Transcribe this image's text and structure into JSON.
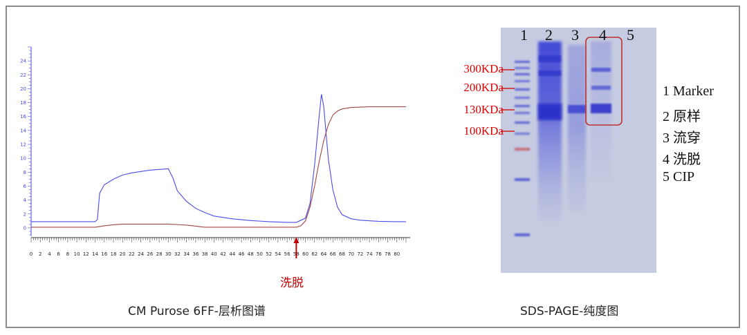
{
  "captions": {
    "chromatogram": "CM Purose 6FF-层析图谱",
    "gel": "SDS-PAGE-纯度图"
  },
  "annotation": {
    "elution_text": "洗脱",
    "color": "#c00000"
  },
  "chart_data": [
    {
      "type": "line",
      "title": "",
      "xlabel": "",
      "ylabel": "",
      "xlim": [
        0,
        82
      ],
      "ylim": [
        -1,
        26
      ],
      "x_ticks": [
        0,
        2,
        4,
        6,
        8,
        10,
        12,
        14,
        16,
        18,
        20,
        22,
        24,
        26,
        28,
        30,
        32,
        34,
        36,
        38,
        40,
        42,
        44,
        46,
        48,
        50,
        52,
        54,
        56,
        58,
        60,
        62,
        64,
        66,
        68,
        70,
        72,
        74,
        76,
        78,
        80
      ],
      "y_ticks": [
        0,
        2,
        4,
        6,
        8,
        10,
        12,
        14,
        16,
        18,
        20,
        22,
        24
      ],
      "series": [
        {
          "color": "#4a4ae8",
          "x": [
            0,
            14,
            14.5,
            15,
            16,
            18,
            20,
            22,
            24,
            26,
            28,
            30,
            31,
            32,
            34,
            36,
            38,
            40,
            44,
            48,
            52,
            56,
            58,
            60,
            61,
            62,
            63,
            63.5,
            64,
            65,
            66,
            67,
            68,
            70,
            72,
            76,
            80,
            82
          ],
          "y": [
            0.9,
            0.9,
            1.2,
            5,
            6.2,
            7,
            7.6,
            7.9,
            8.1,
            8.3,
            8.4,
            8.5,
            7.2,
            5.3,
            3.8,
            2.8,
            2.2,
            1.7,
            1.3,
            1.05,
            0.9,
            0.8,
            0.8,
            1.4,
            3.5,
            9,
            16,
            19.2,
            17.5,
            10,
            5.5,
            3,
            1.9,
            1.3,
            1.1,
            0.95,
            0.9,
            0.9
          ]
        },
        {
          "color": "#a04545",
          "x": [
            0,
            14,
            16,
            18,
            20,
            30,
            34,
            38,
            58,
            59,
            60,
            61,
            62,
            63,
            64,
            65,
            66,
            67,
            68,
            70,
            74,
            80,
            82
          ],
          "y": [
            0.1,
            0.1,
            0.3,
            0.45,
            0.55,
            0.55,
            0.4,
            0.1,
            0.1,
            0.3,
            1,
            3,
            6,
            9.5,
            12.5,
            14.8,
            16.2,
            16.8,
            17.1,
            17.3,
            17.4,
            17.4,
            17.4
          ]
        }
      ],
      "annotations": [
        {
          "x": 58,
          "text": "洗脱"
        }
      ]
    }
  ],
  "gel": {
    "lanes": [
      "1",
      "2",
      "3",
      "4",
      "5"
    ],
    "mw_markers": [
      "300KDa",
      "200KDa",
      "130KDa",
      "100KDa"
    ],
    "legend": [
      "1 Marker",
      "2 原样",
      "3 流穿",
      "4 洗脱",
      "5 CIP"
    ],
    "highlight_lane": "4",
    "highlight_color": "#c03030",
    "background_color": "#c3c9e0",
    "band_color": "#3a3fd0"
  }
}
